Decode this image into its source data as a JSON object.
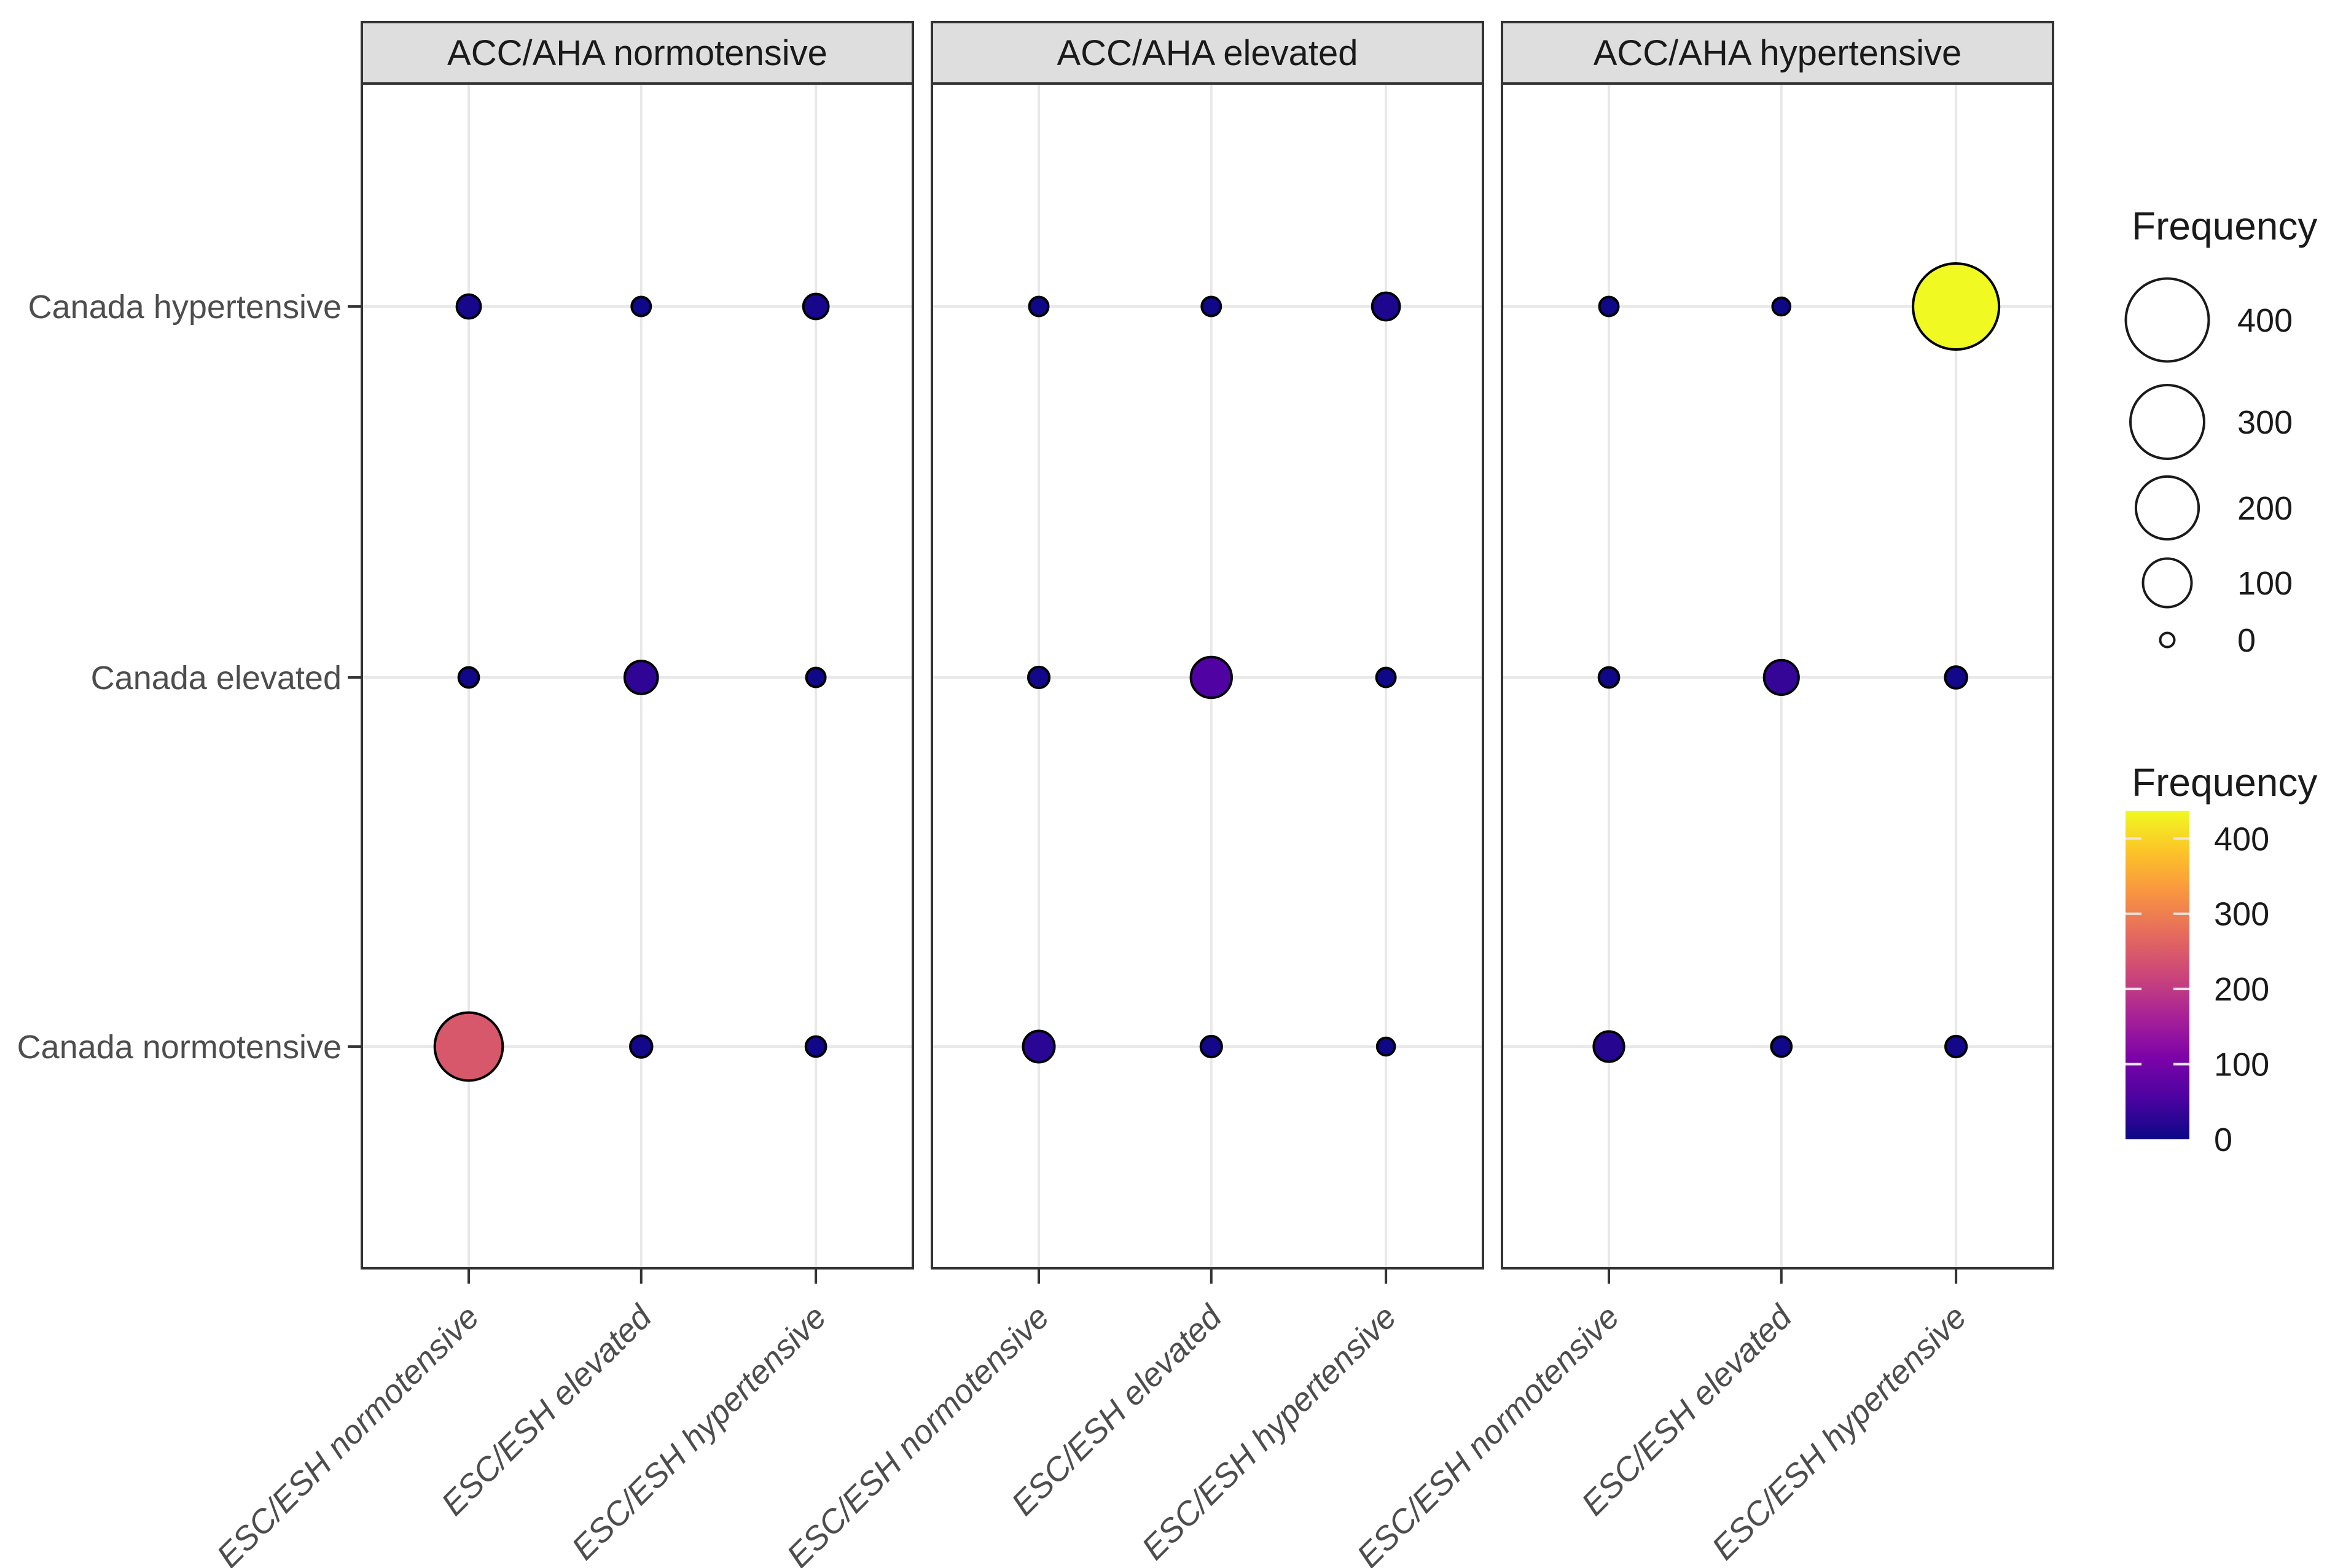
{
  "figure": {
    "background": "#FFFFFF",
    "description": "Faceted bubble chart comparing blood pressure classification frequencies"
  },
  "chart_data": {
    "type": "scatter",
    "subtype": "faceted-bubble-matrix",
    "facets": [
      "ACC/AHA normotensive",
      "ACC/AHA elevated",
      "ACC/AHA hypertensive"
    ],
    "x_categories": [
      "ESC/ESH normotensive",
      "ESC/ESH elevated",
      "ESC/ESH hypertensive"
    ],
    "y_categories": [
      "Canada hypertensive",
      "Canada elevated",
      "Canada normotensive"
    ],
    "values_note": "rows ordered top-to-bottom as y_categories; columns as x_categories; frequencies estimated from bubble size and plasma color",
    "values": [
      [
        [
          8,
          2,
          10
        ],
        [
          3,
          30,
          2
        ],
        [
          245,
          5,
          3
        ]
      ],
      [
        [
          2,
          2,
          15
        ],
        [
          4,
          60,
          2
        ],
        [
          25,
          4,
          1
        ]
      ],
      [
        [
          2,
          1,
          437
        ],
        [
          3,
          35,
          5
        ],
        [
          22,
          3,
          4
        ]
      ]
    ],
    "value_domain": [
      0,
      437
    ],
    "legend_size": {
      "title": "Frequency",
      "ticks": [
        400,
        300,
        200,
        100,
        0
      ]
    },
    "legend_color": {
      "title": "Frequency",
      "ticks": [
        400,
        300,
        200,
        100,
        0
      ],
      "colormap": "plasma",
      "stops": [
        "#0D0887",
        "#4B03A1",
        "#7D03A8",
        "#A82296",
        "#CB4679",
        "#E56B5D",
        "#F89441",
        "#FDC328",
        "#F0F921"
      ]
    },
    "style": {
      "strip_bg": "#DEDEDE",
      "strip_border": "#333333",
      "strip_text": "#1A1A1A",
      "panel_border": "#333333",
      "panel_bg": "#FFFFFF",
      "gridline": "#E8E8E8",
      "axis_text": "#4D4D4D",
      "tick_color": "#333333",
      "dot_stroke": "#000000",
      "legend_text": "#1A1A1A",
      "colorbar_tick": "#E6E6E6"
    },
    "layout_hints": {
      "gridlines": "major only, at category positions",
      "legend_position": "right",
      "x_label_angle_deg": 45,
      "x_label_style": "italic"
    }
  }
}
